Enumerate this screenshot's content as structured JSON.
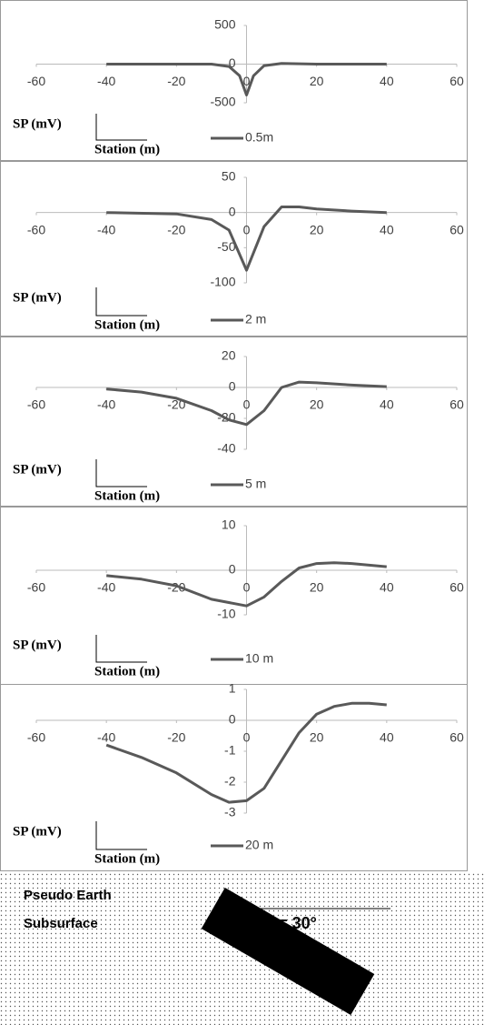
{
  "chart_data": [
    {
      "type": "line",
      "y_label": "SP (mV)",
      "x_label": "Station (m)",
      "x": [
        -40,
        -10,
        -5,
        -2,
        0,
        2,
        5,
        10,
        20,
        40
      ],
      "series": [
        {
          "name": "0.5m",
          "color": "#595959",
          "values": [
            0,
            0,
            -30,
            -150,
            -400,
            -150,
            -20,
            10,
            0,
            0
          ]
        }
      ],
      "xlim": [
        -60,
        60
      ],
      "xticks": [
        -60,
        -40,
        -20,
        0,
        20,
        40,
        60
      ],
      "ylim": [
        -500,
        500
      ],
      "yticks": [
        -500,
        0,
        500
      ]
    },
    {
      "type": "line",
      "y_label": "SP (mV)",
      "x_label": "Station (m)",
      "x": [
        -40,
        -20,
        -10,
        -5,
        0,
        5,
        10,
        15,
        20,
        30,
        40
      ],
      "series": [
        {
          "name": "2 m",
          "color": "#595959",
          "values": [
            0,
            -2,
            -10,
            -25,
            -82,
            -20,
            8,
            8,
            5,
            2,
            0
          ]
        }
      ],
      "xlim": [
        -60,
        60
      ],
      "xticks": [
        -60,
        -40,
        -20,
        0,
        20,
        40,
        60
      ],
      "ylim": [
        -100,
        50
      ],
      "yticks": [
        -100,
        -50,
        0,
        50
      ]
    },
    {
      "type": "line",
      "y_label": "SP (mV)",
      "x_label": "Station (m)",
      "x": [
        -40,
        -30,
        -20,
        -10,
        -5,
        0,
        5,
        10,
        15,
        20,
        30,
        40
      ],
      "series": [
        {
          "name": "5 m",
          "color": "#595959",
          "values": [
            -1,
            -3,
            -7,
            -15,
            -21,
            -24,
            -15,
            0,
            3.5,
            3,
            1.5,
            0.5
          ]
        }
      ],
      "xlim": [
        -60,
        60
      ],
      "xticks": [
        -60,
        -40,
        -20,
        0,
        20,
        40,
        60
      ],
      "ylim": [
        -40,
        20
      ],
      "yticks": [
        -40,
        -20,
        0,
        20
      ]
    },
    {
      "type": "line",
      "y_label": "SP (mV)",
      "x_label": "Station (m)",
      "x": [
        -40,
        -30,
        -20,
        -10,
        0,
        5,
        10,
        15,
        20,
        25,
        30,
        40
      ],
      "series": [
        {
          "name": "10 m",
          "color": "#595959",
          "values": [
            -1.2,
            -2,
            -3.5,
            -6.5,
            -8,
            -6,
            -2.5,
            0.5,
            1.5,
            1.7,
            1.5,
            0.8
          ]
        }
      ],
      "xlim": [
        -60,
        60
      ],
      "xticks": [
        -60,
        -40,
        -20,
        0,
        20,
        40,
        60
      ],
      "ylim": [
        -10,
        10
      ],
      "yticks": [
        -10,
        0,
        10
      ]
    },
    {
      "type": "line",
      "y_label": "SP (mV)",
      "x_label": "Station (m)",
      "x": [
        -40,
        -30,
        -20,
        -10,
        -5,
        0,
        5,
        10,
        15,
        20,
        25,
        30,
        35,
        40
      ],
      "series": [
        {
          "name": "20 m",
          "color": "#595959",
          "values": [
            -0.8,
            -1.2,
            -1.7,
            -2.4,
            -2.65,
            -2.6,
            -2.2,
            -1.3,
            -0.4,
            0.2,
            0.45,
            0.55,
            0.55,
            0.5
          ]
        }
      ],
      "xlim": [
        -60,
        60
      ],
      "xticks": [
        -60,
        -40,
        -20,
        0,
        20,
        40,
        60
      ],
      "ylim": [
        -3,
        1
      ],
      "yticks": [
        -3,
        -2,
        -1,
        0,
        1
      ]
    }
  ],
  "diagram": {
    "labels": [
      "Pseudo Earth",
      "Subsurface"
    ],
    "angle_label": "α = 30°"
  }
}
